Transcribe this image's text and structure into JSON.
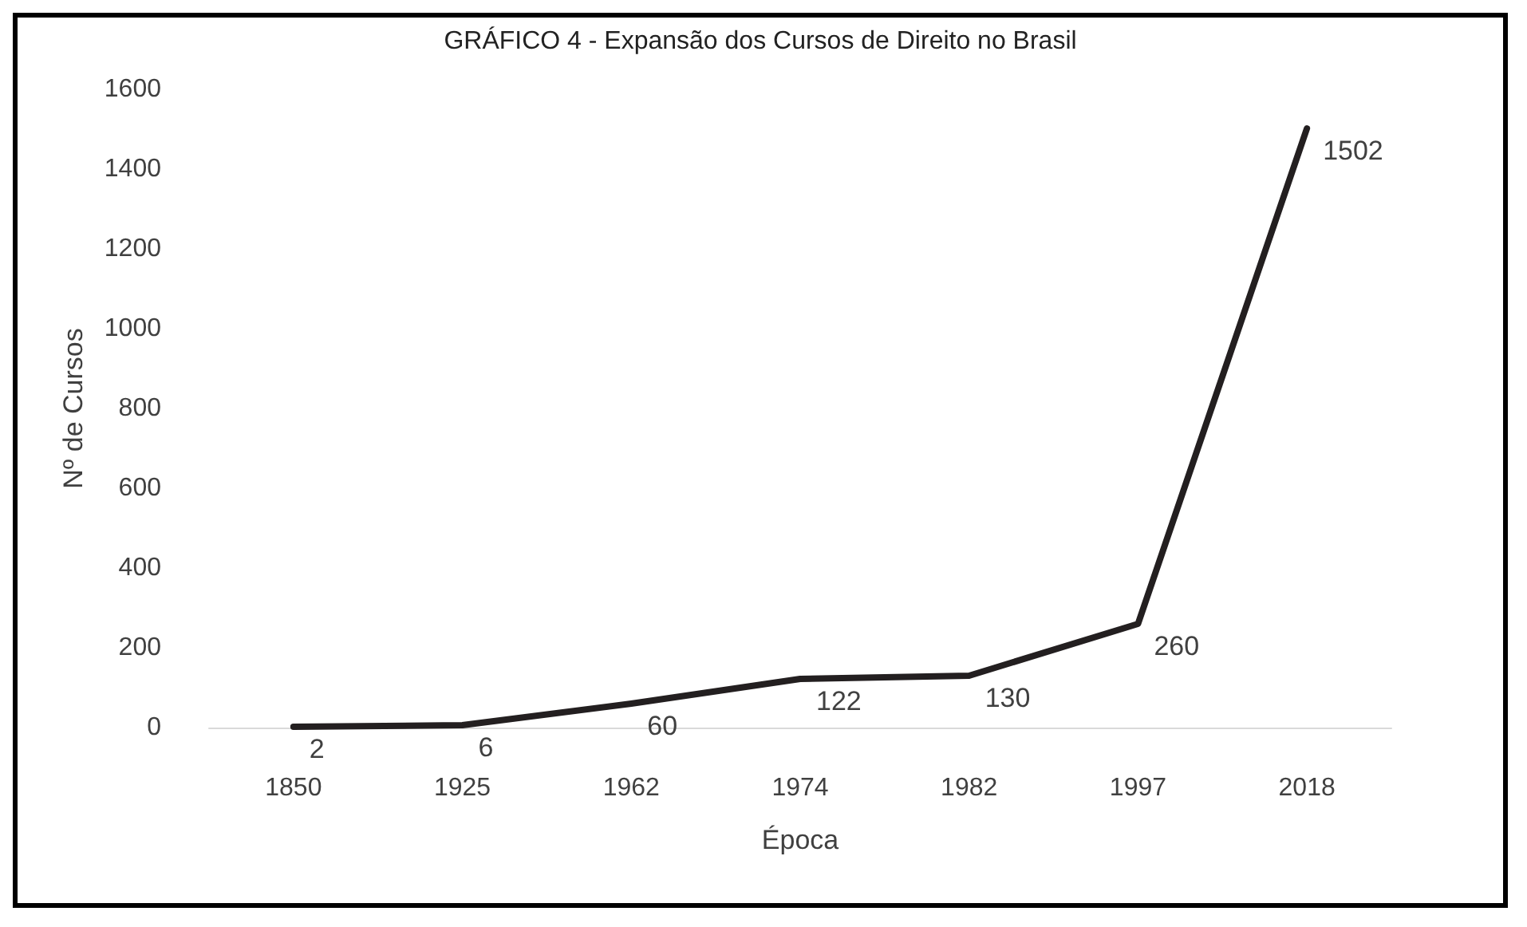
{
  "chart_data": {
    "type": "line",
    "title": "GRÁFICO 4 - Expansão dos Cursos de Direito no Brasil",
    "xlabel": "Época",
    "ylabel": "Nº de Cursos",
    "categories": [
      "1850",
      "1925",
      "1962",
      "1974",
      "1982",
      "1997",
      "2018"
    ],
    "series": [
      {
        "color": "#231f20",
        "values": [
          2,
          6,
          60,
          122,
          130,
          260,
          1502
        ]
      }
    ],
    "ylim": [
      0,
      1600
    ],
    "yticks": [
      0,
      200,
      400,
      600,
      800,
      1000,
      1200,
      1400,
      1600
    ],
    "data_labels": true,
    "grid": false,
    "marker": "none",
    "line_style": "solid"
  }
}
